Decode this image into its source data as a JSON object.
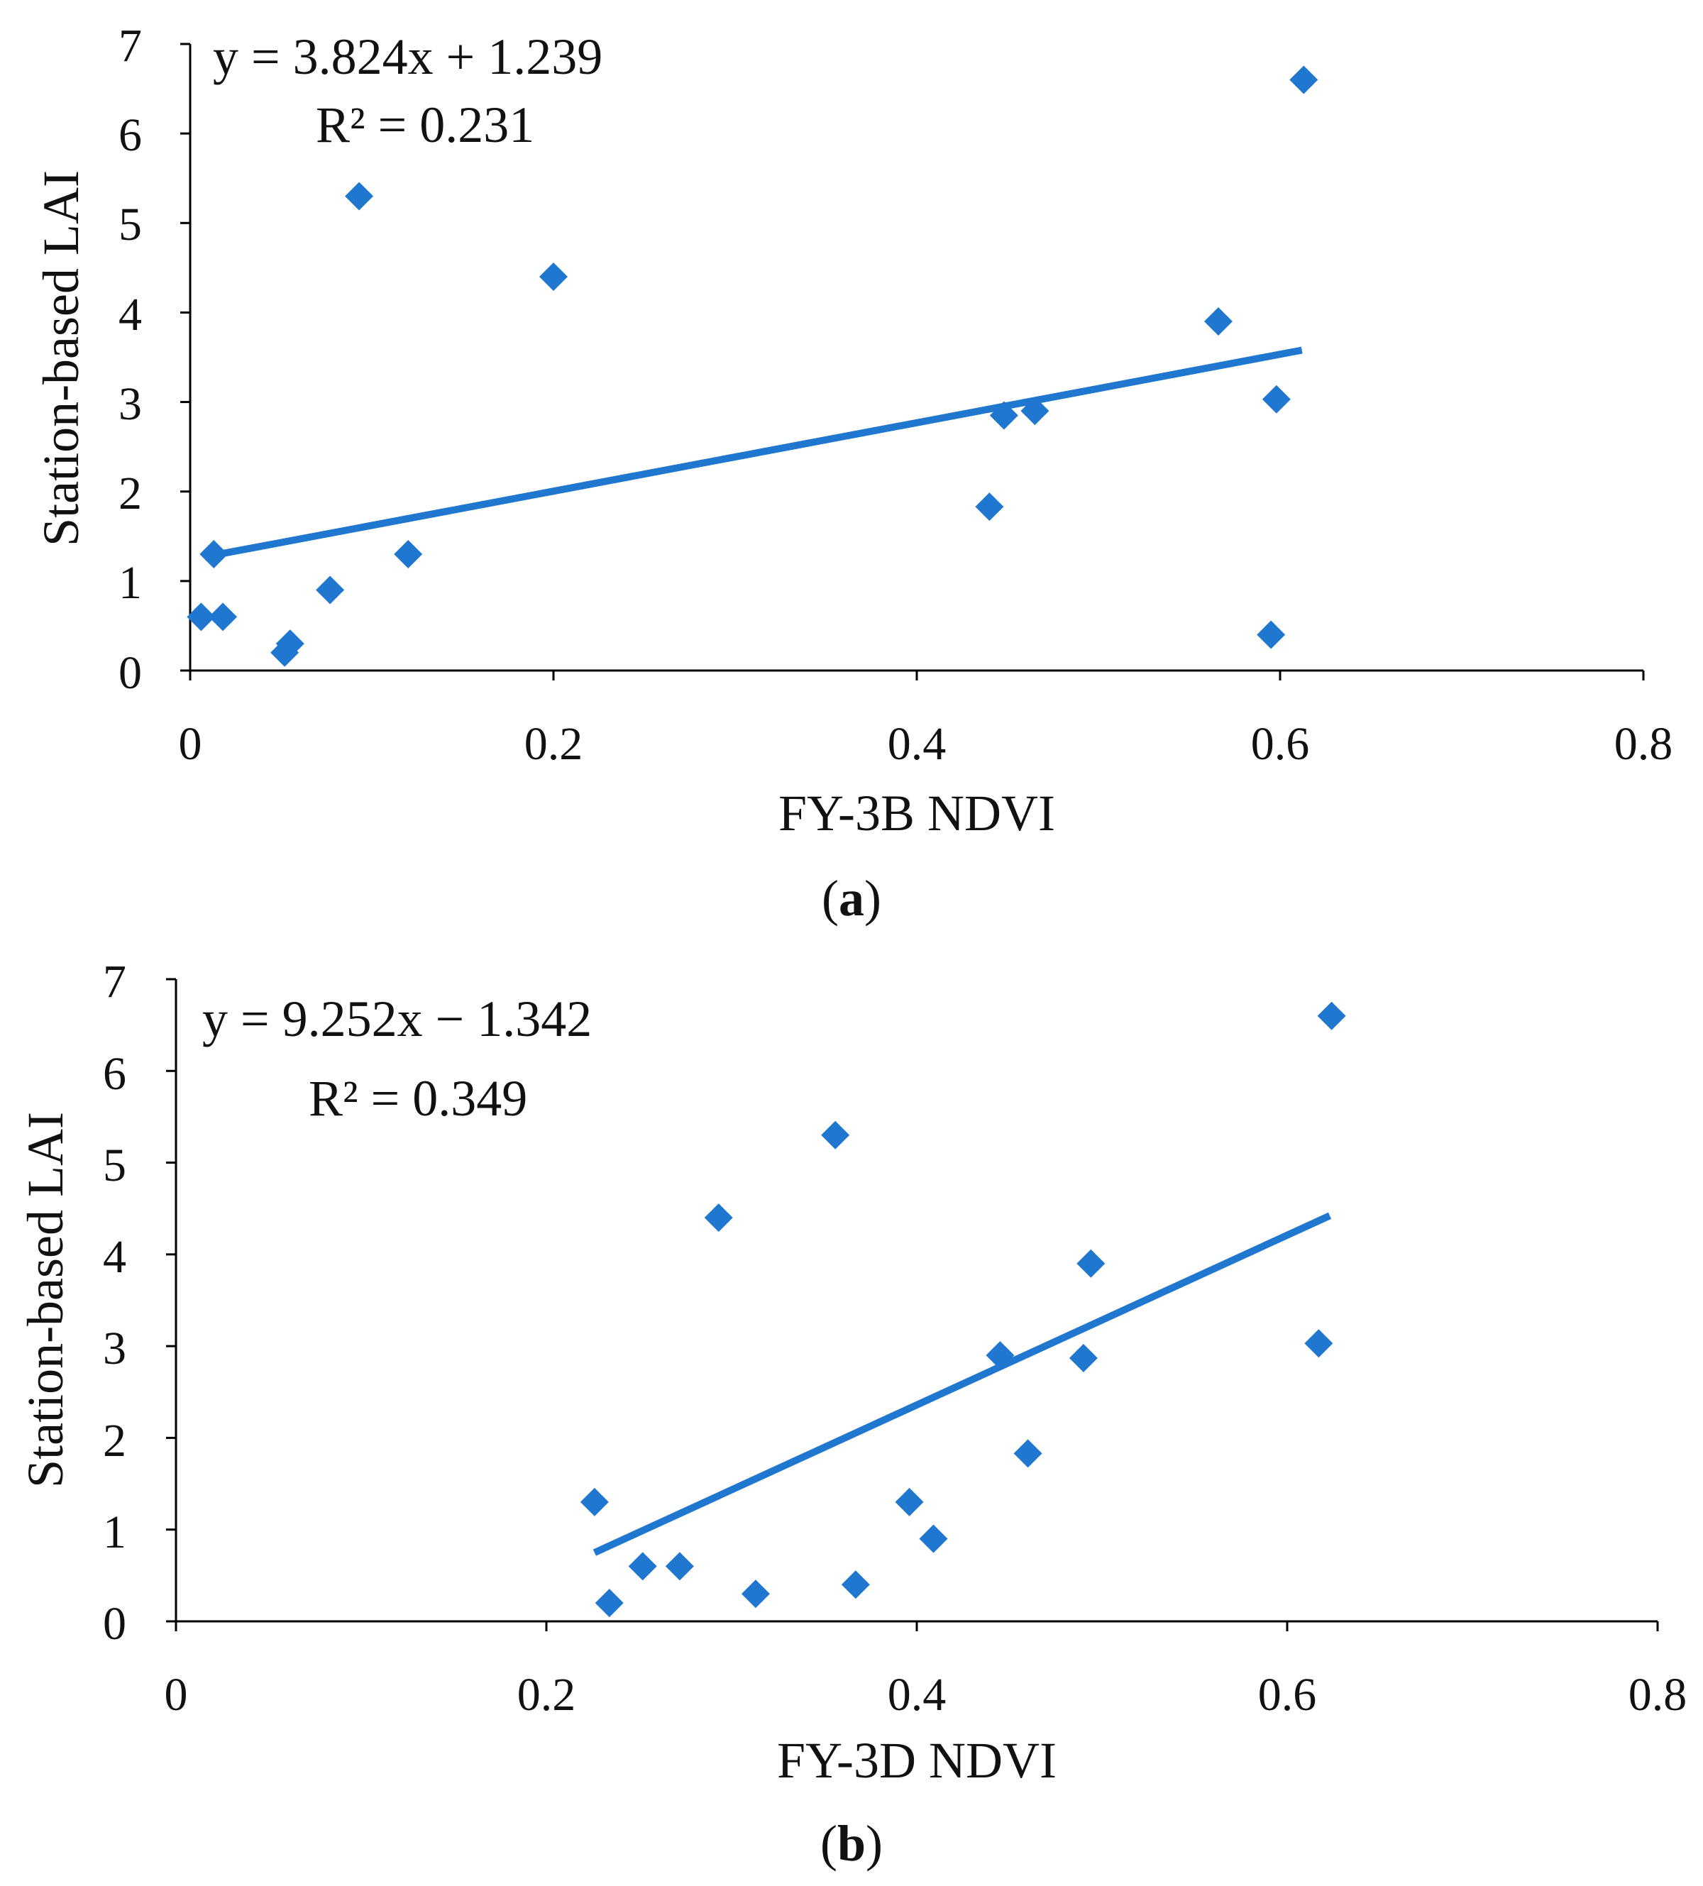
{
  "chart_data": [
    {
      "id": "a",
      "type": "scatter",
      "xlabel": "FY-3B NDVI",
      "ylabel": "Station-based LAI",
      "xlim": [
        0,
        0.8
      ],
      "ylim": [
        0,
        7
      ],
      "xticks": [
        "0",
        "0.2",
        "0.4",
        "0.6",
        "0.8"
      ],
      "yticks": [
        "0",
        "1",
        "2",
        "3",
        "4",
        "5",
        "6",
        "7"
      ],
      "equation": "y = 3.824x + 1.239",
      "r_squared": "R² = 0.231",
      "caption_open": "(",
      "caption_letter": "a",
      "caption_close": ")",
      "color": "#1F77CF",
      "trendline": {
        "slope": 3.824,
        "intercept": 1.239,
        "x": [
          0.008,
          0.612
        ]
      },
      "points": [
        {
          "x": 0.006,
          "y": 0.6
        },
        {
          "x": 0.013,
          "y": 1.3
        },
        {
          "x": 0.018,
          "y": 0.6
        },
        {
          "x": 0.052,
          "y": 0.2
        },
        {
          "x": 0.055,
          "y": 0.3
        },
        {
          "x": 0.077,
          "y": 0.9
        },
        {
          "x": 0.093,
          "y": 5.3
        },
        {
          "x": 0.12,
          "y": 1.3
        },
        {
          "x": 0.2,
          "y": 4.4
        },
        {
          "x": 0.44,
          "y": 1.83
        },
        {
          "x": 0.448,
          "y": 2.85
        },
        {
          "x": 0.465,
          "y": 2.9
        },
        {
          "x": 0.566,
          "y": 3.9
        },
        {
          "x": 0.595,
          "y": 0.4
        },
        {
          "x": 0.598,
          "y": 3.03
        },
        {
          "x": 0.613,
          "y": 6.6
        }
      ]
    },
    {
      "id": "b",
      "type": "scatter",
      "xlabel": "FY-3D NDVI",
      "ylabel": "Station-based LAI",
      "xlim": [
        0,
        0.8
      ],
      "ylim": [
        0,
        7
      ],
      "xticks": [
        "0",
        "0.2",
        "0.4",
        "0.6",
        "0.8"
      ],
      "yticks": [
        "0",
        "1",
        "2",
        "3",
        "4",
        "5",
        "6",
        "7"
      ],
      "equation": "y = 9.252x − 1.342",
      "r_squared": "R² = 0.349",
      "caption_open": "(",
      "caption_letter": "b",
      "caption_close": ")",
      "color": "#1F77CF",
      "trendline": {
        "slope": 9.252,
        "intercept": -1.342,
        "x": [
          0.226,
          0.623
        ]
      },
      "points": [
        {
          "x": 0.226,
          "y": 1.3
        },
        {
          "x": 0.234,
          "y": 0.2
        },
        {
          "x": 0.252,
          "y": 0.6
        },
        {
          "x": 0.272,
          "y": 0.6
        },
        {
          "x": 0.293,
          "y": 4.4
        },
        {
          "x": 0.313,
          "y": 0.3
        },
        {
          "x": 0.356,
          "y": 5.3
        },
        {
          "x": 0.367,
          "y": 0.4
        },
        {
          "x": 0.396,
          "y": 1.3
        },
        {
          "x": 0.409,
          "y": 0.9
        },
        {
          "x": 0.445,
          "y": 2.9
        },
        {
          "x": 0.46,
          "y": 1.83
        },
        {
          "x": 0.49,
          "y": 2.87
        },
        {
          "x": 0.494,
          "y": 3.9
        },
        {
          "x": 0.617,
          "y": 3.03
        },
        {
          "x": 0.624,
          "y": 6.6
        }
      ]
    }
  ]
}
